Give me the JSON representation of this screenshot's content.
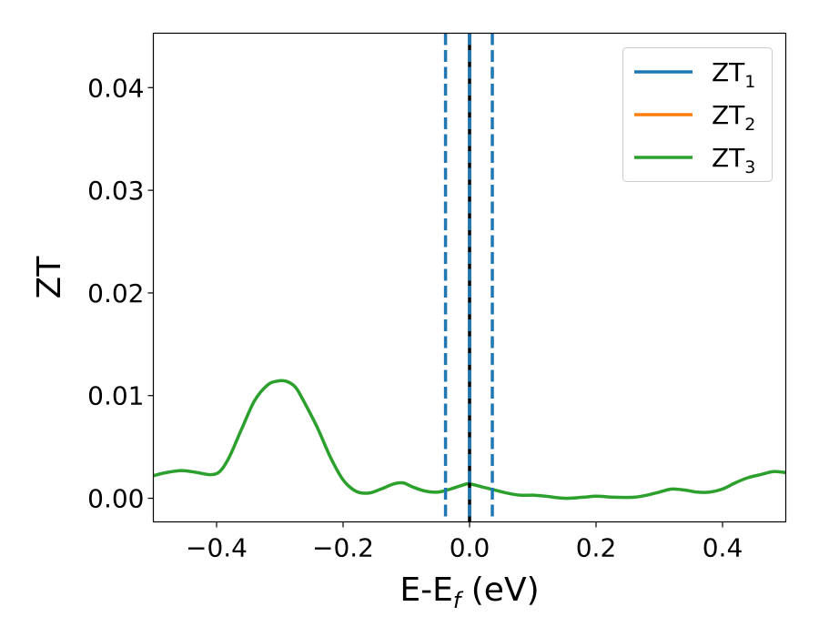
{
  "chart_data": {
    "type": "line",
    "xlabel": "E-E",
    "xlabel_subscript": "f",
    "xlabel_unit": " (eV)",
    "ylabel": "ZT",
    "xlim": [
      -0.5,
      0.5
    ],
    "ylim": [
      -0.0023,
      0.0453
    ],
    "xticks": [
      -0.4,
      -0.2,
      0.0,
      0.2,
      0.4
    ],
    "xtick_labels": [
      "−0.4",
      "−0.2",
      "0.0",
      "0.2",
      "0.4"
    ],
    "yticks": [
      0.0,
      0.01,
      0.02,
      0.03,
      0.04
    ],
    "ytick_labels": [
      "0.00",
      "0.01",
      "0.02",
      "0.03",
      "0.04"
    ],
    "grid": false,
    "legend_position": "top-right",
    "vlines": [
      {
        "x": -0.038,
        "style": "dashed",
        "color": "#1f77b4"
      },
      {
        "x": 0.0,
        "style": "solid",
        "color": "#000000"
      },
      {
        "x": 0.0,
        "style": "dashed",
        "color": "#1f77b4"
      },
      {
        "x": 0.036,
        "style": "dashed",
        "color": "#1f77b4"
      }
    ],
    "series": [
      {
        "name": "ZT",
        "subscript": "1",
        "color": "#1f77b4",
        "x": [],
        "y": []
      },
      {
        "name": "ZT",
        "subscript": "2",
        "color": "#ff7f0e",
        "x": [],
        "y": []
      },
      {
        "name": "ZT",
        "subscript": "3",
        "color": "#2ca02c",
        "x": [
          -0.5,
          -0.48,
          -0.455,
          -0.43,
          -0.41,
          -0.395,
          -0.38,
          -0.36,
          -0.34,
          -0.32,
          -0.305,
          -0.29,
          -0.275,
          -0.26,
          -0.24,
          -0.22,
          -0.2,
          -0.18,
          -0.16,
          -0.14,
          -0.12,
          -0.105,
          -0.09,
          -0.07,
          -0.05,
          -0.03,
          -0.01,
          0.0,
          0.02,
          0.04,
          0.06,
          0.08,
          0.1,
          0.12,
          0.15,
          0.18,
          0.2,
          0.23,
          0.26,
          0.28,
          0.3,
          0.32,
          0.34,
          0.36,
          0.38,
          0.4,
          0.42,
          0.44,
          0.46,
          0.48,
          0.5
        ],
        "y": [
          0.0022,
          0.0025,
          0.0027,
          0.0025,
          0.0023,
          0.0026,
          0.004,
          0.0068,
          0.0095,
          0.011,
          0.0114,
          0.0114,
          0.0108,
          0.0092,
          0.0068,
          0.004,
          0.0018,
          0.0007,
          0.0005,
          0.0009,
          0.0014,
          0.0015,
          0.0011,
          0.0007,
          0.0006,
          0.0009,
          0.0013,
          0.0014,
          0.0011,
          0.0008,
          0.0005,
          0.0003,
          0.0003,
          0.0002,
          0.0,
          0.0001,
          0.0002,
          0.0001,
          0.0001,
          0.0003,
          0.0006,
          0.0009,
          0.0008,
          0.0006,
          0.0006,
          0.0009,
          0.0015,
          0.002,
          0.0023,
          0.0026,
          0.0025
        ]
      }
    ]
  }
}
